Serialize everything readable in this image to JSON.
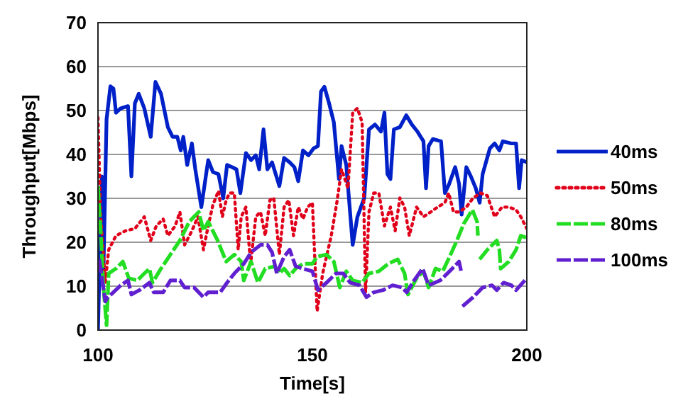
{
  "chart_data": {
    "type": "line",
    "xlabel": "Time[s]",
    "ylabel": "Throughput[Mbps]",
    "xlim": [
      100,
      200
    ],
    "xticks": [
      100,
      150,
      200
    ],
    "ylim": [
      0,
      70
    ],
    "yticks": [
      0,
      10,
      20,
      30,
      40,
      50,
      60,
      70
    ],
    "grid": "y",
    "legend": "right",
    "marker": "none",
    "series": [
      {
        "name": "40ms",
        "color": "#0020c8",
        "line_style": "solid",
        "x": [
          100,
          100.9,
          101.2,
          102,
          102.9,
          103.6,
          104.2,
          105.3,
          107,
          107.8,
          108.6,
          109.5,
          110.8,
          112.3,
          113.4,
          114.7,
          116.3,
          117.4,
          118.5,
          119.3,
          119.9,
          120.8,
          121.9,
          122.7,
          124.1,
          125.7,
          126.8,
          128.1,
          129.2,
          130.1,
          131.5,
          132.3,
          133.2,
          134.5,
          135.7,
          136.8,
          137.6,
          138.6,
          139.5,
          140.6,
          142.3,
          143.4,
          144.7,
          145.8,
          146.7,
          147.8,
          149.1,
          150.3,
          151.3,
          152,
          152.8,
          153.9,
          155,
          156.2,
          156.8,
          157.9,
          159.4,
          160.5,
          162.1,
          163.2,
          164.6,
          166,
          166.8,
          167.5,
          168.2,
          169,
          170.4,
          171.9,
          173.2,
          174.5,
          175.9,
          176.5,
          177.1,
          178.1,
          180,
          180.9,
          181.9,
          183.3,
          184.2,
          184.8,
          185.9,
          187,
          188.1,
          189,
          189.7,
          191.4,
          192.5,
          193.6,
          194.4,
          196.4,
          197.5,
          198.2,
          198.8,
          200
        ],
        "values": [
          0,
          35,
          10,
          48,
          55.5,
          55,
          49.5,
          50.5,
          51,
          35,
          51.6,
          53.8,
          50.5,
          44,
          56.5,
          53.8,
          46.2,
          44,
          44,
          40.9,
          44,
          37.6,
          42.5,
          36.6,
          28,
          38.7,
          36,
          35.5,
          30,
          37.6,
          37,
          36.6,
          31.2,
          40.3,
          38.7,
          39.8,
          36.6,
          45.7,
          36.6,
          38.2,
          32.8,
          39.2,
          38.2,
          37.1,
          33.9,
          40.9,
          39.8,
          41.4,
          41.9,
          54.3,
          55.4,
          51.6,
          47.3,
          34.4,
          41.9,
          37.6,
          19.4,
          25.8,
          30.1,
          45.7,
          46.8,
          45.2,
          49.5,
          35.5,
          34.4,
          45.7,
          46.2,
          48.9,
          46.8,
          45.2,
          43,
          32.3,
          41.9,
          43.5,
          43,
          31.2,
          33.3,
          37.1,
          33.3,
          26.3,
          37.1,
          34.9,
          32.3,
          29,
          35.5,
          41.4,
          42.5,
          40.9,
          43,
          42.5,
          42.5,
          32.3,
          38.7,
          38.2
        ]
      },
      {
        "name": "50ms",
        "color": "#e0001a",
        "line_style": "dotted",
        "x": [
          100,
          100.6,
          101.7,
          102.5,
          104.2,
          106.4,
          108.6,
          110.8,
          112.3,
          113.6,
          115.2,
          116.3,
          118,
          119.1,
          120.2,
          121.9,
          123.3,
          124.6,
          125.7,
          126.8,
          128.1,
          129,
          129.9,
          130.7,
          131.8,
          132.7,
          133.4,
          134.5,
          135.6,
          136.8,
          137.9,
          139,
          140.1,
          141,
          142.3,
          143.4,
          144.5,
          145.6,
          146.7,
          147.8,
          148.9,
          150,
          151.1,
          152.4,
          154.4,
          155.7,
          156.8,
          158.3,
          159.4,
          160.5,
          161.6,
          162.4,
          163.2,
          164.3,
          165.5,
          166.8,
          168.2,
          169.3,
          170.4,
          171.5,
          172.6,
          174.3,
          175.9,
          177.6,
          179.2,
          180.9,
          181.8,
          182.9,
          184.2,
          185.9,
          187.5,
          189.2,
          190.8,
          192.5,
          194.2,
          195.8,
          197.5,
          198.6,
          200
        ],
        "values": [
          48.4,
          26.9,
          10.8,
          18.3,
          21.5,
          22.6,
          23.1,
          25.8,
          20.4,
          23.7,
          25.3,
          21.5,
          23.7,
          26.9,
          19.4,
          22.6,
          25.8,
          18.3,
          23.7,
          28.5,
          31.7,
          25.8,
          29.6,
          31.2,
          31.2,
          18.3,
          25.8,
          28,
          15.1,
          25.8,
          26.9,
          21.5,
          29.6,
          30.1,
          17.2,
          28,
          29.6,
          21.5,
          28,
          25.3,
          28,
          29,
          4.3,
          12.9,
          21.5,
          29,
          36.6,
          32.3,
          49.5,
          50.5,
          47.3,
          8.6,
          26.9,
          31.2,
          31.2,
          23.7,
          28,
          22.6,
          30.1,
          28,
          21.5,
          28,
          25.8,
          26.9,
          28,
          29,
          31.2,
          26.9,
          26.9,
          28,
          30.1,
          31.2,
          30.6,
          25.8,
          28,
          28,
          27.4,
          25.8,
          23.1
        ]
      },
      {
        "name": "80ms",
        "color": "#22dd22",
        "line_style": "dashed",
        "x": [
          100,
          100.7,
          101.2,
          102,
          102.5,
          104.2,
          105.8,
          107.2,
          109.2,
          110.8,
          112,
          112.7,
          114.7,
          116.9,
          119.1,
          121.3,
          123.5,
          124.6,
          125.7,
          127.9,
          129.9,
          131.8,
          133.4,
          134,
          135.7,
          137.3,
          139,
          141.2,
          142.3,
          143.4,
          144.7,
          146.1,
          147.8,
          150,
          151.1,
          153.3,
          155,
          156.4,
          157.9,
          159.4,
          161.6,
          163.2,
          165.5,
          167.7,
          169.9,
          171.5,
          172.3,
          174.3,
          175.9,
          177.1,
          178.7,
          180.4,
          182,
          183.7,
          185.3,
          187.3,
          188.4,
          188.6,
          188.8,
          189,
          190.8,
          193,
          193.6,
          193.9,
          195.8,
          197.5,
          198.6,
          200
        ],
        "values": [
          32.8,
          21.5,
          10.8,
          1.1,
          12.9,
          14,
          15.6,
          11.8,
          11.3,
          12.9,
          14,
          10.8,
          14,
          17.2,
          20.4,
          24.7,
          26.9,
          22.6,
          24.7,
          20.4,
          15.6,
          17.2,
          15.6,
          11.3,
          15.6,
          10.8,
          14,
          14.5,
          12.9,
          14,
          12.4,
          14,
          15.1,
          15.1,
          16.7,
          17.2,
          15.6,
          9.7,
          13.4,
          11.3,
          10.8,
          12.9,
          13.4,
          15.1,
          16.1,
          12.9,
          8.1,
          11.8,
          13.4,
          9.7,
          14,
          13.4,
          16.7,
          20.4,
          24.2,
          27.4,
          24.7,
          21.5,
          null,
          16.1,
          18.3,
          20.4,
          18.3,
          14,
          15.6,
          18.3,
          21.5,
          21
        ]
      },
      {
        "name": "100ms",
        "color": "#6020d0",
        "line_style": "dashed",
        "x": [
          100.3,
          101.7,
          102.3,
          103.6,
          105.3,
          107,
          107.8,
          109.7,
          112,
          113,
          115.2,
          116.9,
          119.1,
          120.2,
          122.4,
          124.6,
          125.7,
          128.5,
          130.1,
          131.8,
          134,
          135.7,
          137.9,
          139.5,
          140.6,
          141.7,
          143.4,
          144.7,
          146.1,
          147.8,
          150,
          151.3,
          153.3,
          155.5,
          157.2,
          158.8,
          161,
          162.6,
          164.3,
          166.5,
          168.7,
          170.9,
          172,
          173.7,
          175.7,
          177.1,
          179.8,
          182,
          184.2,
          184.8,
          184.9,
          185,
          187.5,
          189.7,
          191.9,
          193,
          194.6,
          196.4,
          197.5,
          200
        ],
        "values": [
          16.1,
          6.5,
          7.5,
          8.6,
          10.2,
          11.3,
          8.1,
          9.1,
          10.8,
          8.6,
          8.6,
          11.3,
          11.3,
          9.7,
          9.7,
          7.5,
          8.6,
          8.6,
          10.8,
          12.9,
          15.1,
          17.7,
          19.4,
          19.4,
          17.7,
          12.9,
          16.7,
          18.3,
          14.5,
          14,
          13.4,
          9.1,
          10.8,
          12.9,
          12.9,
          10.8,
          10.2,
          7.5,
          8.6,
          9.1,
          10.2,
          9.7,
          8.6,
          11.3,
          14,
          10.2,
          11.3,
          13.4,
          15.6,
          12.9,
          null,
          5.4,
          7.5,
          9.7,
          10.2,
          9.1,
          10.8,
          10.2,
          9.1,
          11.8
        ]
      }
    ]
  }
}
